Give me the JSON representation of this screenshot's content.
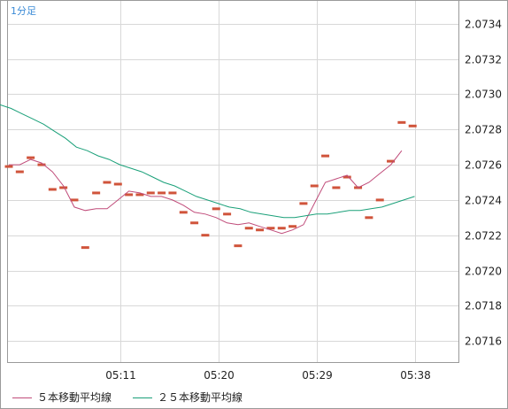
{
  "interval_label": "1分足",
  "legend": {
    "ma5": "５本移動平均線",
    "ma25": "２５本移動平均線"
  },
  "colors": {
    "candle": "#d0543b",
    "ma5": "#c04c7a",
    "ma25": "#1aa079",
    "grid": "#d8d8d8",
    "frame": "#9a9a9a"
  },
  "chart_data": {
    "type": "line",
    "x_tick_labels": [
      "05:11",
      "05:20",
      "05:29",
      "05:38"
    ],
    "y_tick_labels": [
      "2.0734",
      "2.0732",
      "2.0730",
      "2.0728",
      "2.0726",
      "2.0724",
      "2.0722",
      "2.0720",
      "2.0718",
      "2.0716"
    ],
    "ylim": [
      2.07148,
      2.07353
    ],
    "grid": true,
    "legend_position": "bottom",
    "candles": [
      2.07259,
      2.07256,
      2.07264,
      2.0726,
      2.07246,
      2.07247,
      2.0724,
      2.07213,
      2.07244,
      2.0725,
      2.07249,
      2.07243,
      2.07243,
      2.07244,
      2.07244,
      2.07244,
      2.07233,
      2.07227,
      2.0722,
      2.07235,
      2.07232,
      2.07214,
      2.07224,
      2.07223,
      2.07224,
      2.07224,
      2.07225,
      2.07238,
      2.07248,
      2.07265,
      2.07247,
      2.07253,
      2.07247,
      2.0723,
      2.0724,
      2.07262,
      2.07284,
      2.07282
    ],
    "series": [
      {
        "name": "５本移動平均線",
        "values": [
          2.0726,
          2.0726,
          2.07263,
          2.07261,
          2.07256,
          2.07248,
          2.07236,
          2.07234,
          2.07235,
          2.07235,
          2.0724,
          2.07245,
          2.07244,
          2.07242,
          2.07242,
          2.0724,
          2.07237,
          2.07233,
          2.07232,
          2.0723,
          2.07227,
          2.07226,
          2.07227,
          2.07225,
          2.07223,
          2.07221,
          2.07223,
          2.07226,
          2.07238,
          2.0725,
          2.07252,
          2.07254,
          2.07247,
          2.0725,
          2.07255,
          2.0726,
          2.07268
        ]
      },
      {
        "name": "２５本移動平均線",
        "values": [
          2.07294,
          2.07292,
          2.07289,
          2.07286,
          2.07283,
          2.07279,
          2.07275,
          2.0727,
          2.07268,
          2.07265,
          2.07263,
          2.0726,
          2.07258,
          2.07256,
          2.07253,
          2.0725,
          2.07248,
          2.07245,
          2.07242,
          2.0724,
          2.07238,
          2.07236,
          2.07235,
          2.07233,
          2.07232,
          2.07231,
          2.0723,
          2.0723,
          2.07231,
          2.07232,
          2.07232,
          2.07233,
          2.07234,
          2.07234,
          2.07235,
          2.07236,
          2.07238,
          2.0724,
          2.07242
        ]
      }
    ]
  }
}
